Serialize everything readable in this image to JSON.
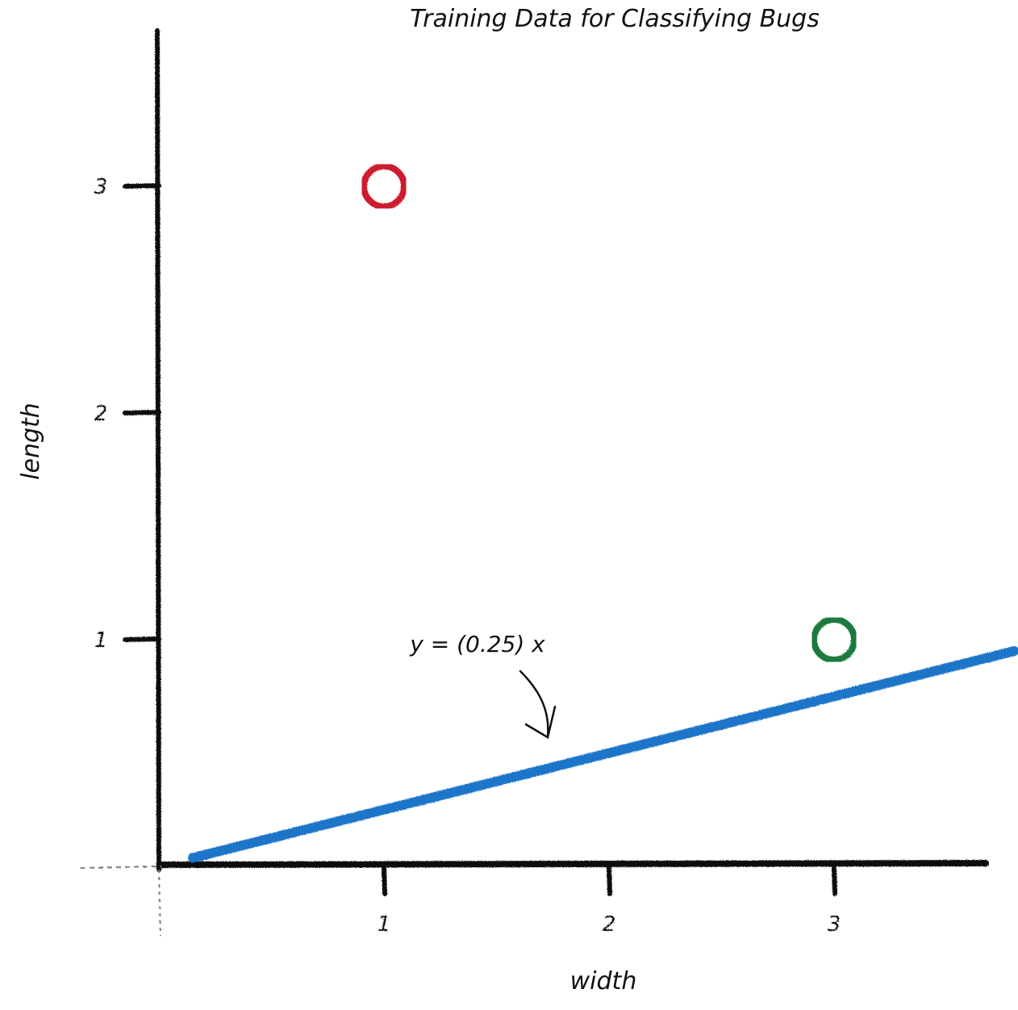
{
  "chart_data": {
    "type": "scatter",
    "title": "Training Data for Classifying Bugs",
    "xlabel": "width",
    "ylabel": "length",
    "xlim": [
      0,
      3.8
    ],
    "ylim": [
      0,
      3.6
    ],
    "x_ticks": [
      "1",
      "2",
      "3"
    ],
    "y_ticks": [
      "1",
      "2",
      "3"
    ],
    "grid": false,
    "points": [
      {
        "x": 1,
        "y": 3,
        "color": "#cc1f2f",
        "marker": "open-circle"
      },
      {
        "x": 3,
        "y": 1,
        "color": "#1a7a3c",
        "marker": "open-circle"
      }
    ],
    "line": {
      "slope": 0.25,
      "x_start": 0.15,
      "x_end": 3.8,
      "color": "#1f74c9",
      "label": "y = (0.25) x"
    }
  }
}
